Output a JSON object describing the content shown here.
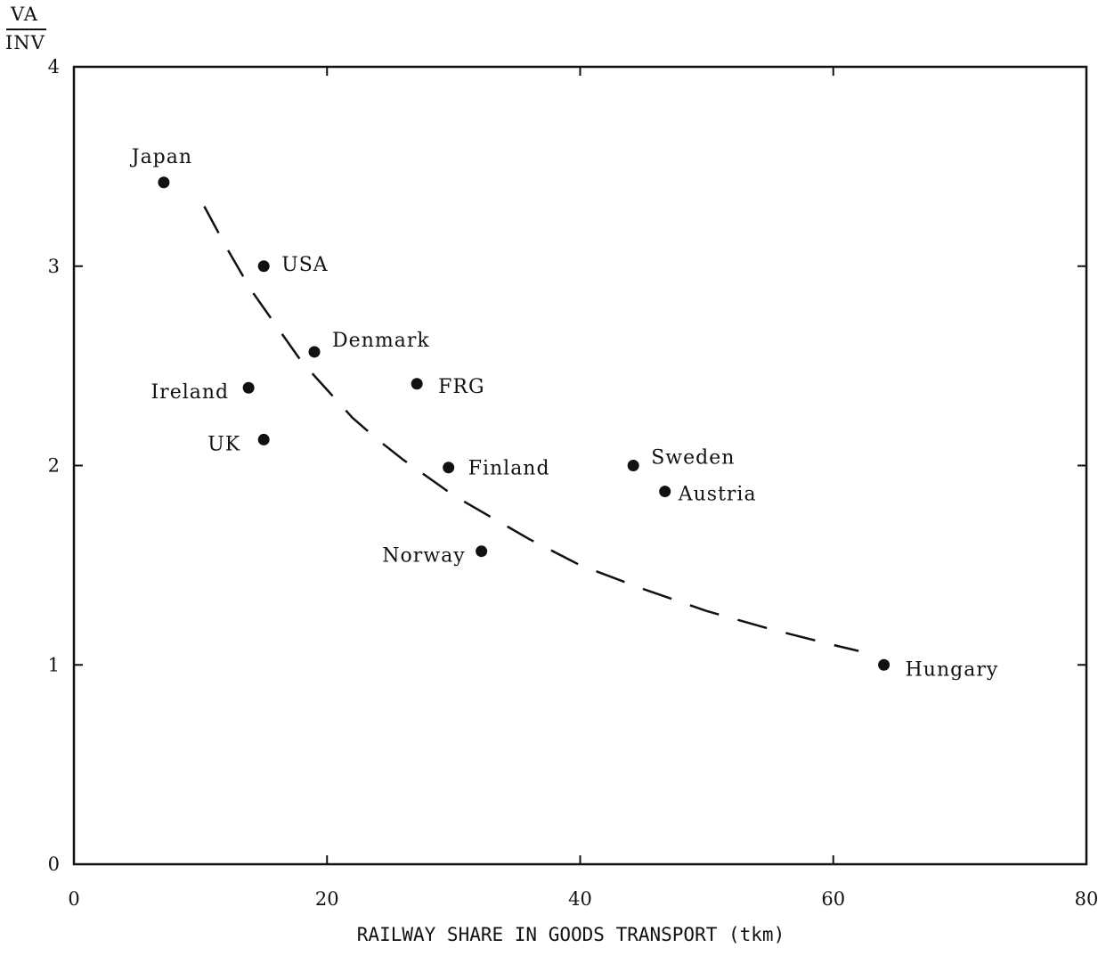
{
  "chart_data": {
    "type": "scatter",
    "title": "",
    "ylabel_numerator": "VA",
    "ylabel_denominator": "INV",
    "xlabel": "RAILWAY SHARE IN GOODS TRANSPORT (tkm)",
    "xlim": [
      0,
      80
    ],
    "ylim": [
      0,
      4
    ],
    "xticks": [
      0,
      20,
      40,
      60,
      80
    ],
    "yticks": [
      0,
      1,
      2,
      3,
      4
    ],
    "grid": false,
    "points": [
      {
        "label": "Japan",
        "x": 7.1,
        "y": 3.42
      },
      {
        "label": "USA",
        "x": 15.0,
        "y": 3.0
      },
      {
        "label": "Denmark",
        "x": 19.0,
        "y": 2.57
      },
      {
        "label": "Ireland",
        "x": 13.8,
        "y": 2.39
      },
      {
        "label": "FRG",
        "x": 27.1,
        "y": 2.41
      },
      {
        "label": "UK",
        "x": 15.0,
        "y": 2.13
      },
      {
        "label": "Finland",
        "x": 29.6,
        "y": 1.99
      },
      {
        "label": "Sweden",
        "x": 44.2,
        "y": 2.0
      },
      {
        "label": "Austria",
        "x": 46.7,
        "y": 1.87
      },
      {
        "label": "Norway",
        "x": 32.2,
        "y": 1.57
      },
      {
        "label": "Hungary",
        "x": 64.0,
        "y": 1.0
      }
    ],
    "fitted_curve": {
      "style": "dashed",
      "x": [
        10.3,
        12,
        14,
        16,
        18,
        20,
        22,
        24,
        26,
        28,
        30,
        33,
        36,
        40,
        45,
        50,
        55,
        60,
        62
      ],
      "y": [
        3.3,
        3.1,
        2.88,
        2.7,
        2.52,
        2.38,
        2.24,
        2.13,
        2.03,
        1.94,
        1.85,
        1.74,
        1.63,
        1.5,
        1.38,
        1.27,
        1.18,
        1.1,
        1.07
      ]
    }
  }
}
